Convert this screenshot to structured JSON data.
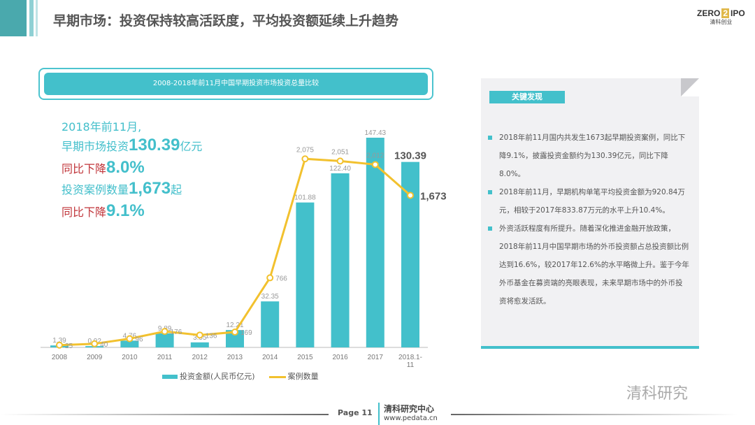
{
  "header": {
    "title": "早期市场：投资保持较高活跃度，平均投资额延续上升趋势",
    "logo_text": "ZERO2IPO",
    "logo_sub": "清科创业"
  },
  "chart_header": "2008-2018年前11月中国早期投资市场投资总量比较",
  "highlights": {
    "line1": "2018年前11月,",
    "line2_pre": "早期市场投资",
    "line2_num": "130.39",
    "line2_suf": "亿元",
    "line3_pre": "同比下降",
    "line3_num": "8.0%",
    "line4_pre": "投资案例数量",
    "line4_num": "1,673",
    "line4_suf": "起",
    "line5_pre": "同比下降",
    "line5_num": "9.1%"
  },
  "chart_data": {
    "type": "bar+line",
    "categories": [
      "2008",
      "2009",
      "2010",
      "2011",
      "2012",
      "2013",
      "2014",
      "2015",
      "2016",
      "2017",
      "2018.1-11"
    ],
    "series": [
      {
        "name": "投资金额(人民币亿元)",
        "type": "bar",
        "color": "#43c0cb",
        "values": [
          1.39,
          0.92,
          4.76,
          9.89,
          3.55,
          12.21,
          32.35,
          101.88,
          122.4,
          147.43,
          130.39
        ],
        "labels": [
          "1.39",
          "0.92",
          "4.76",
          "9.89",
          "3.55",
          "12.21",
          "32.35",
          "101.88",
          "122.40",
          "147.43",
          "130.39"
        ]
      },
      {
        "name": "案例数量",
        "type": "line",
        "color": "#f2c12e",
        "values": [
          25,
          40,
          96,
          176,
          136,
          169,
          766,
          2075,
          2051,
          2012,
          1673
        ],
        "labels": [
          "25",
          "40",
          "96",
          "176",
          "136",
          "169",
          "766",
          "2,075",
          "2,051",
          "2,012",
          "1,673"
        ]
      }
    ],
    "legend": "bottom",
    "grid": false
  },
  "panel": {
    "title": "关键发现",
    "bullets": [
      "2018年前11月国内共发生1673起早期投资案例，同比下降9.1%，披露投资金额约为130.39亿元，同比下降8.0%。",
      "2018年前11月，早期机构单笔平均投资金额为920.84万元，相较于2017年833.87万元的水平上升10.4%。",
      "外资活跃程度有所提升。随着深化推进金融开放政策，2018年前11月中国早期市场的外币投资额占总投资额比例达到16.6%，较2017年12.6%的水平略微上升。鉴于今年外币基金在募资端的亮眼表现，未来早期市场中的外币投资将愈发活跃。"
    ]
  },
  "footer": {
    "page_label": "Page",
    "page_num": "11",
    "org": "清科研究中心",
    "url": "www.pedata.cn",
    "watermark": "清科研究"
  }
}
